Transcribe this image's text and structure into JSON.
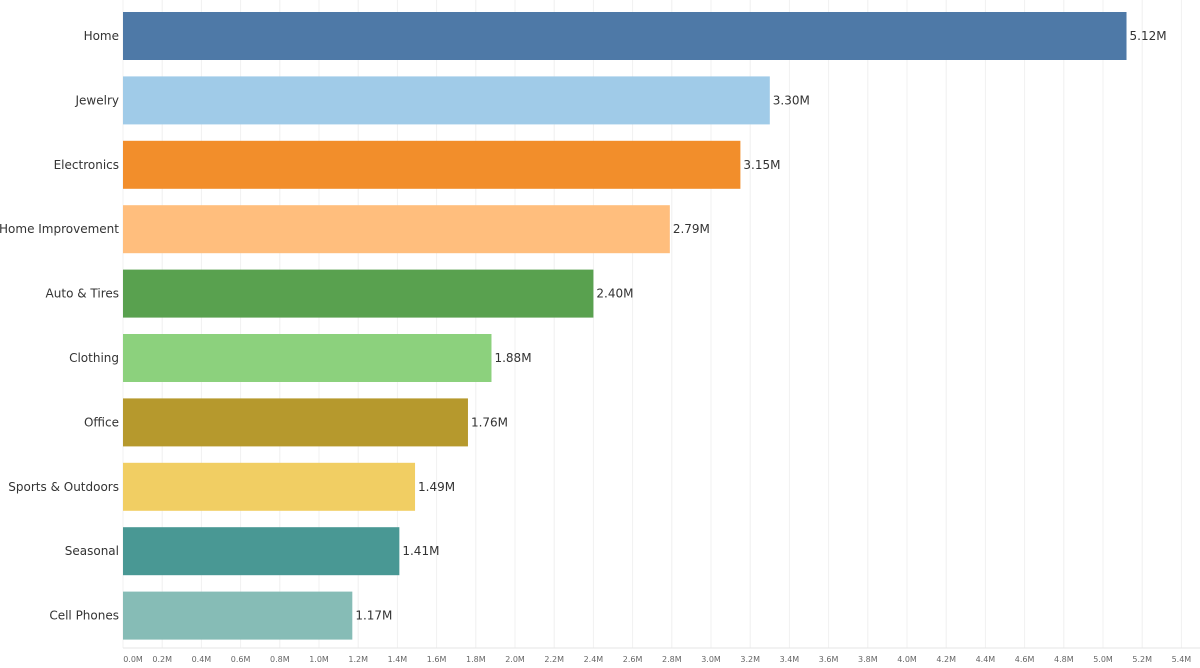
{
  "chart_data": {
    "type": "bar",
    "orientation": "horizontal",
    "categories": [
      "Home",
      "Jewelry",
      "Electronics",
      "Home Improvement",
      "Auto & Tires",
      "Clothing",
      "Office",
      "Sports & Outdoors",
      "Seasonal",
      "Cell Phones"
    ],
    "values": [
      5.12,
      3.3,
      3.15,
      2.79,
      2.4,
      1.88,
      1.76,
      1.49,
      1.41,
      1.17
    ],
    "data_labels": [
      "5.12M",
      "3.30M",
      "3.15M",
      "2.79M",
      "2.40M",
      "1.88M",
      "1.76M",
      "1.49M",
      "1.41M",
      "1.17M"
    ],
    "colors": [
      "#4e79a7",
      "#a0cbe8",
      "#f28e2b",
      "#ffbe7d",
      "#59a14f",
      "#8cd17d",
      "#b6992d",
      "#f1ce63",
      "#499894",
      "#86bcb6"
    ],
    "xlim": [
      0,
      5.4
    ],
    "x_ticks": [
      "0.0M",
      "0.2M",
      "0.4M",
      "0.6M",
      "0.8M",
      "1.0M",
      "1.2M",
      "1.4M",
      "1.6M",
      "1.8M",
      "2.0M",
      "2.2M",
      "2.4M",
      "2.6M",
      "2.8M",
      "3.0M",
      "3.2M",
      "3.4M",
      "3.6M",
      "3.8M",
      "4.0M",
      "4.2M",
      "4.4M",
      "4.6M",
      "4.8M",
      "5.0M",
      "5.2M",
      "5.4M"
    ],
    "grid": true,
    "xlabel": "",
    "ylabel": "",
    "title": ""
  }
}
